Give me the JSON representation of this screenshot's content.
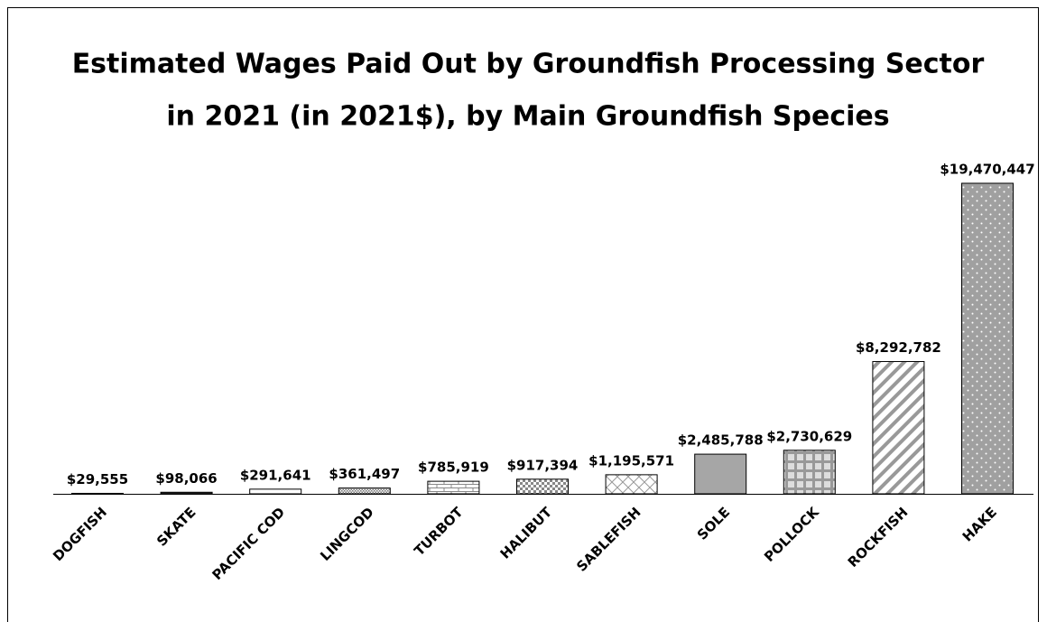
{
  "chart_data": {
    "type": "bar",
    "title": [
      "Estimated Wages Paid Out by Groundfish Processing Sector",
      "in 2021 (in 2021$), by Main Groundfish Species"
    ],
    "categories": [
      "DOGFISH",
      "SKATE",
      "PACIFIC COD",
      "LINGCOD",
      "TURBOT",
      "HALIBUT",
      "SABLEFISH",
      "SOLE",
      "POLLOCK",
      "ROCKFISH",
      "HAKE"
    ],
    "values": [
      29555,
      98066,
      291641,
      361497,
      785919,
      917394,
      1195571,
      2485788,
      2730629,
      8292782,
      19470447
    ],
    "value_labels": [
      "$29,555",
      "$98,066",
      "$291,641",
      "$361,497",
      "$785,919",
      "$917,394",
      "$1,195,571",
      "$2,485,788",
      "$2,730,629",
      "$8,292,782",
      "$19,470,447"
    ]
  }
}
